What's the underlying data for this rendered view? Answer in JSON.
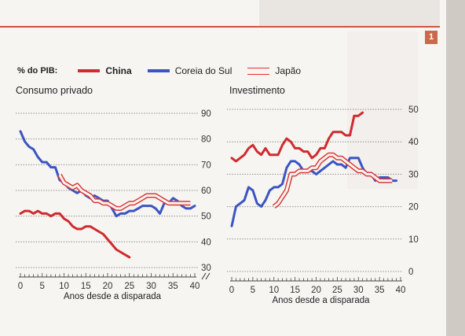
{
  "header": {
    "badge": "1"
  },
  "colors": {
    "china": "#cf2b30",
    "korea": "#3a55c2",
    "japan": "#d93a3a",
    "grid": "#8a8a8a",
    "rule": "#d2533d"
  },
  "legend": {
    "lead": "% do PIB:",
    "items": [
      {
        "label": "China",
        "key": "china"
      },
      {
        "label": "Coreia do Sul",
        "key": "korea"
      },
      {
        "label": "Japão",
        "key": "japan"
      }
    ]
  },
  "chart_data": [
    {
      "type": "line",
      "title": "Consumo privado",
      "xlabel": "Anos desde a disparada",
      "xlim": [
        0,
        40
      ],
      "ylim": [
        30,
        90
      ],
      "yticks": [
        30,
        40,
        50,
        60,
        70,
        80,
        90
      ],
      "xticks": [
        0,
        5,
        10,
        15,
        20,
        25,
        30,
        35,
        40
      ],
      "axis_break": true,
      "series": [
        {
          "key": "china",
          "x_start": 0,
          "values": [
            51,
            52,
            52,
            51,
            52,
            51,
            51,
            50,
            51,
            51,
            49,
            48,
            46,
            45,
            45,
            46,
            46,
            45,
            44,
            43,
            41,
            39,
            37,
            36,
            35,
            34
          ]
        },
        {
          "key": "korea",
          "x_start": 0,
          "values": [
            83,
            79,
            77,
            76,
            73,
            71,
            71,
            69,
            69,
            64,
            63,
            61,
            60,
            59,
            60,
            58,
            57,
            58,
            57,
            56,
            56,
            53,
            50,
            51,
            51,
            52,
            52,
            53,
            54,
            54,
            54,
            53,
            51,
            55,
            55,
            57,
            56,
            54,
            53,
            53,
            54
          ]
        },
        {
          "key": "japan",
          "x_start": 9,
          "values": [
            66,
            63,
            62,
            61,
            62,
            60,
            59,
            58,
            56,
            56,
            55,
            55,
            54,
            53,
            53,
            54,
            55,
            55,
            56,
            57,
            58,
            58,
            58,
            57,
            56,
            55,
            55,
            55,
            55,
            55,
            55
          ]
        }
      ]
    },
    {
      "type": "line",
      "title": "Investimento",
      "xlabel": "Anos desde a disparada",
      "xlim": [
        0,
        40
      ],
      "ylim": [
        0,
        50
      ],
      "yticks": [
        0,
        10,
        20,
        30,
        40,
        50
      ],
      "xticks": [
        0,
        5,
        10,
        15,
        20,
        25,
        30,
        35,
        40
      ],
      "series": [
        {
          "key": "china",
          "x_start": 0,
          "values": [
            35,
            34,
            35,
            36,
            38,
            39,
            37,
            36,
            38,
            36,
            36,
            36,
            39,
            41,
            40,
            38,
            38,
            37,
            37,
            35,
            36,
            38,
            38,
            41,
            43,
            43,
            43,
            42,
            42,
            48,
            48,
            49
          ]
        },
        {
          "key": "korea",
          "x_start": 0,
          "values": [
            14,
            20,
            21,
            22,
            26,
            25,
            21,
            20,
            22,
            25,
            26,
            26,
            27,
            32,
            34,
            34,
            33,
            31,
            31,
            31,
            30,
            31,
            32,
            33,
            34,
            33,
            33,
            32,
            35,
            35,
            35,
            32,
            30,
            30,
            28,
            29,
            29,
            29,
            28,
            28
          ]
        },
        {
          "key": "japan",
          "x_start": 10,
          "values": [
            20,
            21,
            23,
            25,
            30,
            30,
            31,
            31,
            31,
            32,
            32,
            34,
            35,
            36,
            36,
            35,
            35,
            34,
            33,
            32,
            31,
            31,
            30,
            30,
            29,
            28,
            28,
            28,
            28
          ]
        }
      ]
    }
  ]
}
